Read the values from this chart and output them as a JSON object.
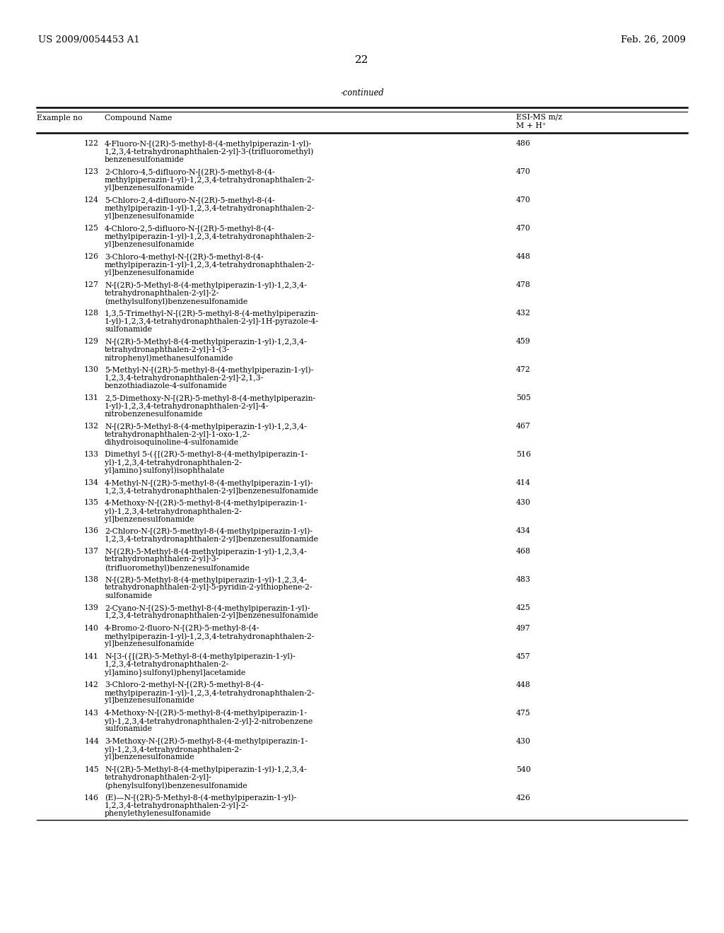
{
  "header_left": "US 2009/0054453 A1",
  "header_right": "Feb. 26, 2009",
  "page_number": "22",
  "table_title": "-continued",
  "col1_header": "Example no",
  "col2_header": "Compound Name",
  "col3_header_line1": "ESI-MS m/z",
  "col3_header_line2": "M + H⁺",
  "rows": [
    [
      122,
      "4-Fluoro-N-[(2R)-5-methyl-8-(4-methylpiperazin-1-yl)-\n1,2,3,4-tetrahydronaphthalen-2-yl]-3-(trifluoromethyl)\nbenzenesulfonamide",
      "486"
    ],
    [
      123,
      "2-Chloro-4,5-difluoro-N-[(2R)-5-methyl-8-(4-\nmethylpiperazin-1-yl)-1,2,3,4-tetrahydronaphthalen-2-\nyl]benzenesulfonamide",
      "470"
    ],
    [
      124,
      "5-Chloro-2,4-difluoro-N-[(2R)-5-methyl-8-(4-\nmethylpiperazin-1-yl)-1,2,3,4-tetrahydronaphthalen-2-\nyl]benzenesulfonamide",
      "470"
    ],
    [
      125,
      "4-Chloro-2,5-difluoro-N-[(2R)-5-methyl-8-(4-\nmethylpiperazin-1-yl)-1,2,3,4-tetrahydronaphthalen-2-\nyl]benzenesulfonamide",
      "470"
    ],
    [
      126,
      "3-Chloro-4-methyl-N-[(2R)-5-methyl-8-(4-\nmethylpiperazin-1-yl)-1,2,3,4-tetrahydronaphthalen-2-\nyl]benzenesulfonamide",
      "448"
    ],
    [
      127,
      "N-[(2R)-5-Methyl-8-(4-methylpiperazin-1-yl)-1,2,3,4-\ntetrahydronaphthalen-2-yl]-2-\n(methylsulfonyl)benzenesulfonamide",
      "478"
    ],
    [
      128,
      "1,3,5-Trimethyl-N-[(2R)-5-methyl-8-(4-methylpiperazin-\n1-yl)-1,2,3,4-tetrahydronaphthalen-2-yl]-1H-pyrazole-4-\nsulfonamide",
      "432"
    ],
    [
      129,
      "N-[(2R)-5-Methyl-8-(4-methylpiperazin-1-yl)-1,2,3,4-\ntetrahydronaphthalen-2-yl]-1-(3-\nnitrophenyl)methanesulfonamide",
      "459"
    ],
    [
      130,
      "5-Methyl-N-[(2R)-5-methyl-8-(4-methylpiperazin-1-yl)-\n1,2,3,4-tetrahydronaphthalen-2-yl]-2,1,3-\nbenzothiadiazole-4-sulfonamide",
      "472"
    ],
    [
      131,
      "2,5-Dimethoxy-N-[(2R)-5-methyl-8-(4-methylpiperazin-\n1-yl)-1,2,3,4-tetrahydronaphthalen-2-yl]-4-\nnitrobenzenesulfonamide",
      "505"
    ],
    [
      132,
      "N-[(2R)-5-Methyl-8-(4-methylpiperazin-1-yl)-1,2,3,4-\ntetrahydronaphthalen-2-yl]-1-oxo-1,2-\ndihydroisoquinoline-4-sulfonamide",
      "467"
    ],
    [
      133,
      "Dimethyl 5-({[(2R)-5-methyl-8-(4-methylpiperazin-1-\nyl)-1,2,3,4-tetrahydronaphthalen-2-\nyl]amino}sulfonyl)isophthalate",
      "516"
    ],
    [
      134,
      "4-Methyl-N-[(2R)-5-methyl-8-(4-methylpiperazin-1-yl)-\n1,2,3,4-tetrahydronaphthalen-2-yl]benzenesulfonamide",
      "414"
    ],
    [
      135,
      "4-Methoxy-N-[(2R)-5-methyl-8-(4-methylpiperazin-1-\nyl)-1,2,3,4-tetrahydronaphthalen-2-\nyl]benzenesulfonamide",
      "430"
    ],
    [
      136,
      "2-Chloro-N-[(2R)-5-methyl-8-(4-methylpiperazin-1-yl)-\n1,2,3,4-tetrahydronaphthalen-2-yl]benzenesulfonamide",
      "434"
    ],
    [
      137,
      "N-[(2R)-5-Methyl-8-(4-methylpiperazin-1-yl)-1,2,3,4-\ntetrahydronaphthalen-2-yl]-3-\n(trifluoromethyl)benzenesulfonamide",
      "468"
    ],
    [
      138,
      "N-[(2R)-5-Methyl-8-(4-methylpiperazin-1-yl)-1,2,3,4-\ntetrahydronaphthalen-2-yl]-5-pyridin-2-ylthiophene-2-\nsulfonamide",
      "483"
    ],
    [
      139,
      "2-Cyano-N-[(2S)-5-methyl-8-(4-methylpiperazin-1-yl)-\n1,2,3,4-tetrahydronaphthalen-2-yl]benzenesulfonamide",
      "425"
    ],
    [
      140,
      "4-Bromo-2-fluoro-N-[(2R)-5-methyl-8-(4-\nmethylpiperazin-1-yl)-1,2,3,4-tetrahydronaphthalen-2-\nyl]benzenesulfonamide",
      "497"
    ],
    [
      141,
      "N-[3-({[(2R)-5-Methyl-8-(4-methylpiperazin-1-yl)-\n1,2,3,4-tetrahydronaphthalen-2-\nyl]amino}sulfonyl)phenyl]acetamide",
      "457"
    ],
    [
      142,
      "3-Chloro-2-methyl-N-[(2R)-5-methyl-8-(4-\nmethylpiperazin-1-yl)-1,2,3,4-tetrahydronaphthalen-2-\nyl]benzenesulfonamide",
      "448"
    ],
    [
      143,
      "4-Methoxy-N-[(2R)-5-methyl-8-(4-methylpiperazin-1-\nyl)-1,2,3,4-tetrahydronaphthalen-2-yl]-2-nitrobenzene\nsulfonamide",
      "475"
    ],
    [
      144,
      "3-Methoxy-N-[(2R)-5-methyl-8-(4-methylpiperazin-1-\nyl)-1,2,3,4-tetrahydronaphthalen-2-\nyl]benzenesulfonamide",
      "430"
    ],
    [
      145,
      "N-[(2R)-5-Methyl-8-(4-methylpiperazin-1-yl)-1,2,3,4-\ntetrahydronaphthalen-2-yl]-\n(phenylsulfonyl)benzenesulfonamide",
      "540"
    ],
    [
      146,
      "(E)—N-[(2R)-5-Methyl-8-(4-methylpiperazin-1-yl)-\n1,2,3,4-tetrahydronaphthalen-2-yl]-2-\nphenylethylenesulfonamide",
      "426"
    ]
  ],
  "bg_color": "#ffffff",
  "text_color": "#000000",
  "font_size_body": 7.8,
  "font_size_page": 11,
  "font_size_header_lr": 9.5
}
